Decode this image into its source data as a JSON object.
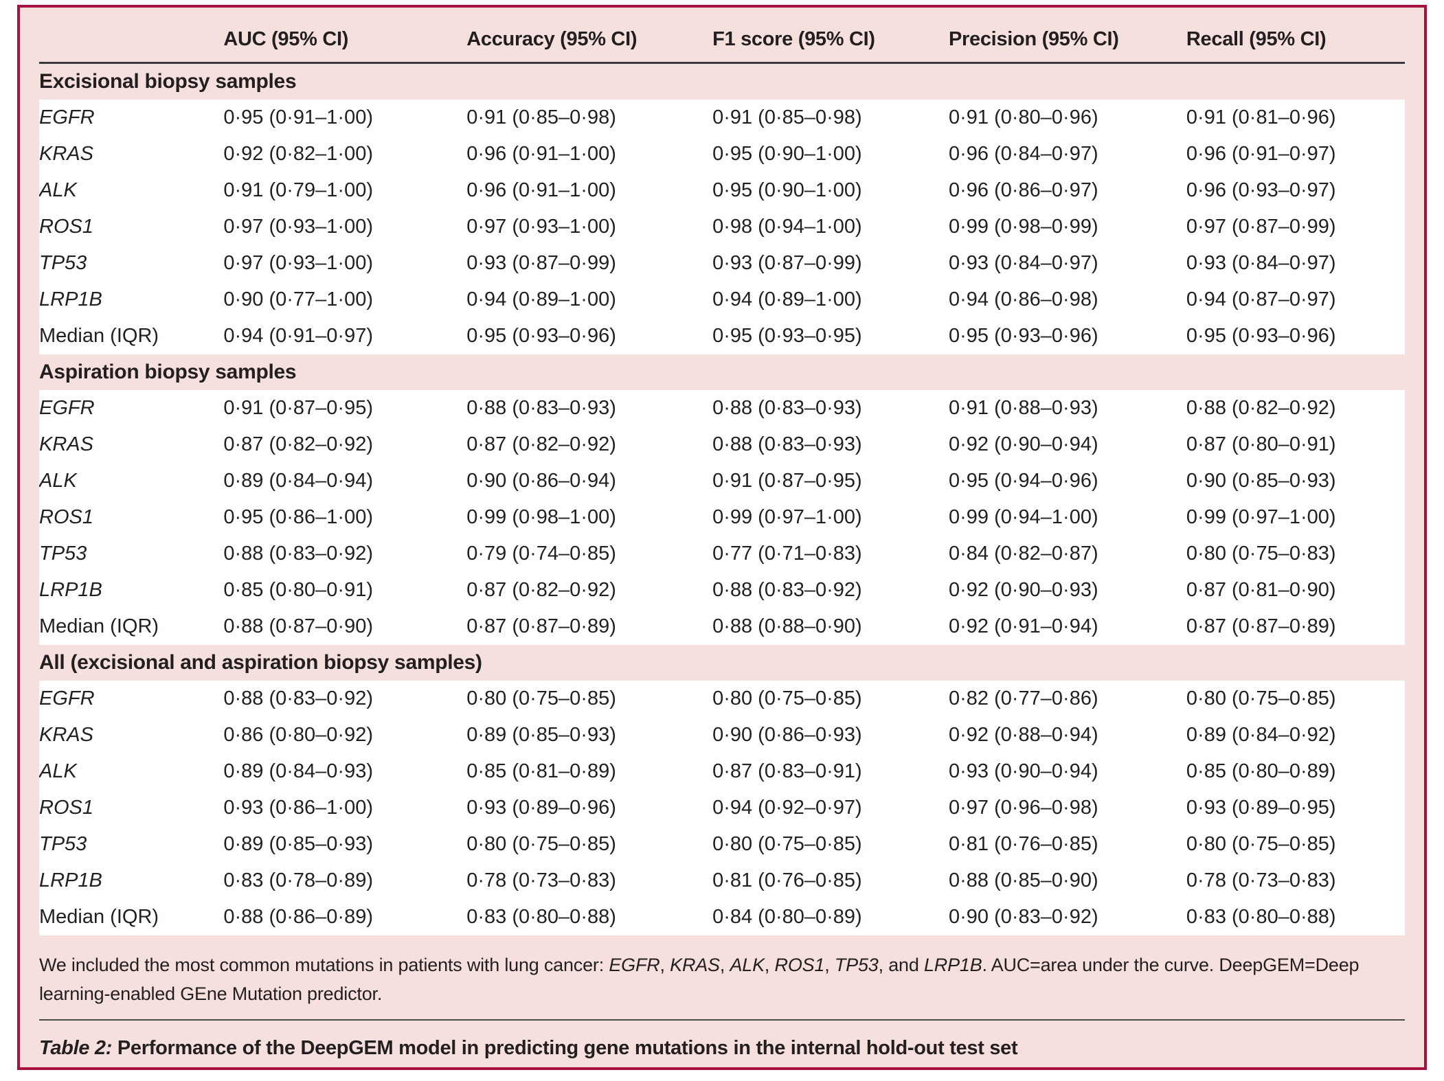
{
  "colors": {
    "page_background": "#ffffff",
    "panel_background": "#f5e0dd",
    "border_crimson": "#a5123f",
    "text": "#231f20",
    "row_background": "#ffffff",
    "rule": "#3a3a3a"
  },
  "table": {
    "columns": [
      "",
      "AUC (95% CI)",
      "Accuracy (95% CI)",
      "F1 score (95% CI)",
      "Precision (95% CI)",
      "Recall (95% CI)"
    ],
    "sections": [
      {
        "title": "Excisional biopsy samples",
        "rows": [
          {
            "label": "EGFR",
            "italic": true,
            "values": [
              "0·95 (0·91–1·00)",
              "0·91 (0·85–0·98)",
              "0·91 (0·85–0·98)",
              "0·91 (0·80–0·96)",
              "0·91 (0·81–0·96)"
            ]
          },
          {
            "label": "KRAS",
            "italic": true,
            "values": [
              "0·92 (0·82–1·00)",
              "0·96 (0·91–1·00)",
              "0·95 (0·90–1·00)",
              "0·96 (0·84–0·97)",
              "0·96 (0·91–0·97)"
            ]
          },
          {
            "label": "ALK",
            "italic": true,
            "values": [
              "0·91 (0·79–1·00)",
              "0·96 (0·91–1·00)",
              "0·95 (0·90–1·00)",
              "0·96 (0·86–0·97)",
              "0·96 (0·93–0·97)"
            ]
          },
          {
            "label": "ROS1",
            "italic": true,
            "values": [
              "0·97 (0·93–1·00)",
              "0·97 (0·93–1·00)",
              "0·98 (0·94–1·00)",
              "0·99 (0·98–0·99)",
              "0·97 (0·87–0·99)"
            ]
          },
          {
            "label": "TP53",
            "italic": true,
            "values": [
              "0·97 (0·93–1·00)",
              "0·93 (0·87–0·99)",
              "0·93 (0·87–0·99)",
              "0·93 (0·84–0·97)",
              "0·93 (0·84–0·97)"
            ]
          },
          {
            "label": "LRP1B",
            "italic": true,
            "values": [
              "0·90 (0·77–1·00)",
              "0·94 (0·89–1·00)",
              "0·94 (0·89–1·00)",
              "0·94 (0·86–0·98)",
              "0·94 (0·87–0·97)"
            ]
          },
          {
            "label": "Median (IQR)",
            "italic": false,
            "values": [
              "0·94 (0·91–0·97)",
              "0·95 (0·93–0·96)",
              "0·95 (0·93–0·95)",
              "0·95 (0·93–0·96)",
              "0·95 (0·93–0·96)"
            ]
          }
        ]
      },
      {
        "title": "Aspiration biopsy samples",
        "rows": [
          {
            "label": "EGFR",
            "italic": true,
            "values": [
              "0·91 (0·87–0·95)",
              "0·88 (0·83–0·93)",
              "0·88 (0·83–0·93)",
              "0·91 (0·88–0·93)",
              "0·88 (0·82–0·92)"
            ]
          },
          {
            "label": "KRAS",
            "italic": true,
            "values": [
              "0·87 (0·82–0·92)",
              "0·87 (0·82–0·92)",
              "0·88 (0·83–0·93)",
              "0·92 (0·90–0·94)",
              "0·87 (0·80–0·91)"
            ]
          },
          {
            "label": "ALK",
            "italic": true,
            "values": [
              "0·89 (0·84–0·94)",
              "0·90 (0·86–0·94)",
              "0·91 (0·87–0·95)",
              "0·95 (0·94–0·96)",
              "0·90 (0·85–0·93)"
            ]
          },
          {
            "label": "ROS1",
            "italic": true,
            "values": [
              "0·95 (0·86–1·00)",
              "0·99 (0·98–1·00)",
              "0·99 (0·97–1·00)",
              "0·99 (0·94–1·00)",
              "0·99 (0·97–1·00)"
            ]
          },
          {
            "label": "TP53",
            "italic": true,
            "values": [
              "0·88 (0·83–0·92)",
              "0·79 (0·74–0·85)",
              "0·77 (0·71–0·83)",
              "0·84 (0·82–0·87)",
              "0·80 (0·75–0·83)"
            ]
          },
          {
            "label": "LRP1B",
            "italic": true,
            "values": [
              "0·85 (0·80–0·91)",
              "0·87 (0·82–0·92)",
              "0·88 (0·83–0·92)",
              "0·92 (0·90–0·93)",
              "0·87 (0·81–0·90)"
            ]
          },
          {
            "label": "Median (IQR)",
            "italic": false,
            "values": [
              "0·88 (0·87–0·90)",
              "0·87 (0·87–0·89)",
              "0·88 (0·88–0·90)",
              "0·92 (0·91–0·94)",
              "0·87 (0·87–0·89)"
            ]
          }
        ]
      },
      {
        "title": "All (excisional and aspiration biopsy samples)",
        "rows": [
          {
            "label": "EGFR",
            "italic": true,
            "values": [
              "0·88 (0·83–0·92)",
              "0·80 (0·75–0·85)",
              "0·80 (0·75–0·85)",
              "0·82 (0·77–0·86)",
              "0·80 (0·75–0·85)"
            ]
          },
          {
            "label": "KRAS",
            "italic": true,
            "values": [
              "0·86 (0·80–0·92)",
              "0·89 (0·85–0·93)",
              "0·90 (0·86–0·93)",
              "0·92 (0·88–0·94)",
              "0·89 (0·84–0·92)"
            ]
          },
          {
            "label": "ALK",
            "italic": true,
            "values": [
              "0·89 (0·84–0·93)",
              "0·85 (0·81–0·89)",
              "0·87 (0·83–0·91)",
              "0·93 (0·90–0·94)",
              "0·85 (0·80–0·89)"
            ]
          },
          {
            "label": "ROS1",
            "italic": true,
            "values": [
              "0·93 (0·86–1·00)",
              "0·93 (0·89–0·96)",
              "0·94 (0·92–0·97)",
              "0·97 (0·96–0·98)",
              "0·93 (0·89–0·95)"
            ]
          },
          {
            "label": "TP53",
            "italic": true,
            "values": [
              "0·89 (0·85–0·93)",
              "0·80 (0·75–0·85)",
              "0·80 (0·75–0·85)",
              "0·81 (0·76–0·85)",
              "0·80 (0·75–0·85)"
            ]
          },
          {
            "label": "LRP1B",
            "italic": true,
            "values": [
              "0·83 (0·78–0·89)",
              "0·78 (0·73–0·83)",
              "0·81 (0·76–0·85)",
              "0·88 (0·85–0·90)",
              "0·78 (0·73–0·83)"
            ]
          },
          {
            "label": "Median (IQR)",
            "italic": false,
            "values": [
              "0·88 (0·86–0·89)",
              "0·83 (0·80–0·88)",
              "0·84 (0·80–0·89)",
              "0·90 (0·83–0·92)",
              "0·83 (0·80–0·88)"
            ]
          }
        ]
      }
    ]
  },
  "footnote": {
    "parts": [
      {
        "text": "We included the most common mutations in patients with lung cancer: "
      },
      {
        "text": "EGFR",
        "italic": true
      },
      {
        "text": ", "
      },
      {
        "text": "KRAS",
        "italic": true
      },
      {
        "text": ", "
      },
      {
        "text": "ALK",
        "italic": true
      },
      {
        "text": ", "
      },
      {
        "text": "ROS1",
        "italic": true
      },
      {
        "text": ", "
      },
      {
        "text": "TP53",
        "italic": true
      },
      {
        "text": ", and "
      },
      {
        "text": "LRP1B",
        "italic": true
      },
      {
        "text": ". AUC=area under the curve. DeepGEM=Deep learning-enabled GEne Mutation predictor."
      }
    ]
  },
  "caption": {
    "parts": [
      {
        "text": "Table 2:",
        "italic": true
      },
      {
        "text": " Performance of the DeepGEM model in predicting gene mutations in the internal hold-out test set"
      }
    ]
  }
}
